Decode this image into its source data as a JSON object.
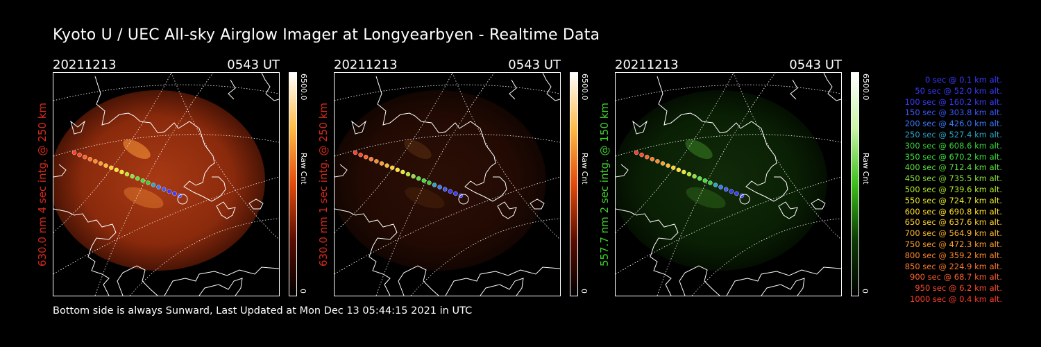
{
  "title": "Kyoto U / UEC All-sky Airglow Imager at Longyearbyen - Realtime Data",
  "footer": "Bottom side is always Sunward, Last Updated at Mon Dec 13 05:44:15 2021 in UTC",
  "panels": [
    {
      "date": "20211213",
      "time": "0543 UT",
      "ylabel": "630.0 nm 4 sec intg. @ 250 km",
      "label_color": "#d82a1a",
      "cbar_max": "6500.0",
      "cbar_min": "0",
      "cbar_label": "Raw Cnt",
      "cbar_colors": [
        "#ffffff",
        "#ffbb44",
        "#e24a0a",
        "#5a0d00",
        "#000000"
      ],
      "image_intensity": 1.0,
      "image_hue": "red"
    },
    {
      "date": "20211213",
      "time": "0543 UT",
      "ylabel": "630.0 nm 1 sec intg. @ 250 km",
      "label_color": "#d82a1a",
      "cbar_max": "6500.0",
      "cbar_min": "0",
      "cbar_label": "Raw Cnt",
      "cbar_colors": [
        "#ffffff",
        "#ffbb44",
        "#e24a0a",
        "#5a0d00",
        "#000000"
      ],
      "image_intensity": 0.25,
      "image_hue": "red"
    },
    {
      "date": "20211213",
      "time": "0543 UT",
      "ylabel": "557.7 nm 2 sec intg. @ 150 km",
      "label_color": "#3ecf2a",
      "cbar_max": "6500.0",
      "cbar_min": "0",
      "cbar_label": "Raw Cnt",
      "cbar_colors": [
        "#ffffff",
        "#c9f5a8",
        "#3bbf1a",
        "#0c3a05",
        "#000000"
      ],
      "image_intensity": 0.55,
      "image_hue": "green"
    }
  ],
  "legend": [
    {
      "text": "0 sec @   0.1 km alt.",
      "color": "#3a3aff"
    },
    {
      "text": "50 sec @  52.0 km alt.",
      "color": "#3a3aff"
    },
    {
      "text": "100 sec @ 160.2 km alt.",
      "color": "#3a3aff"
    },
    {
      "text": "150 sec @ 303.8 km alt.",
      "color": "#3a5aff"
    },
    {
      "text": "200 sec @ 426.0 km alt.",
      "color": "#3a7aff"
    },
    {
      "text": "250 sec @ 527.4 km alt.",
      "color": "#2aa6c8"
    },
    {
      "text": "300 sec @ 608.6 km alt.",
      "color": "#3ad23a"
    },
    {
      "text": "350 sec @ 670.2 km alt.",
      "color": "#3ae23a"
    },
    {
      "text": "400 sec @ 712.4 km alt.",
      "color": "#5ae23a"
    },
    {
      "text": "450 sec @ 735.5 km alt.",
      "color": "#8ae23a"
    },
    {
      "text": "500 sec @ 739.6 km alt.",
      "color": "#b4ea2a"
    },
    {
      "text": "550 sec @ 724.7 km alt.",
      "color": "#e6ea2a"
    },
    {
      "text": "600 sec @ 690.8 km alt.",
      "color": "#ffe12a"
    },
    {
      "text": "650 sec @ 637.6 km alt.",
      "color": "#ffd02a"
    },
    {
      "text": "700 sec @ 564.9 km alt.",
      "color": "#ffb82a"
    },
    {
      "text": "750 sec @ 472.3 km alt.",
      "color": "#ffa02a"
    },
    {
      "text": "800 sec @ 359.2 km alt.",
      "color": "#ff8a2a"
    },
    {
      "text": "850 sec @ 224.9 km alt.",
      "color": "#ff7a2a"
    },
    {
      "text": "900 sec @  68.7 km alt.",
      "color": "#ff602a"
    },
    {
      "text": "950 sec @   6.2 km alt.",
      "color": "#ff4a2a"
    },
    {
      "text": "1000 sec @   0.4 km alt.",
      "color": "#ff3a2a"
    }
  ]
}
